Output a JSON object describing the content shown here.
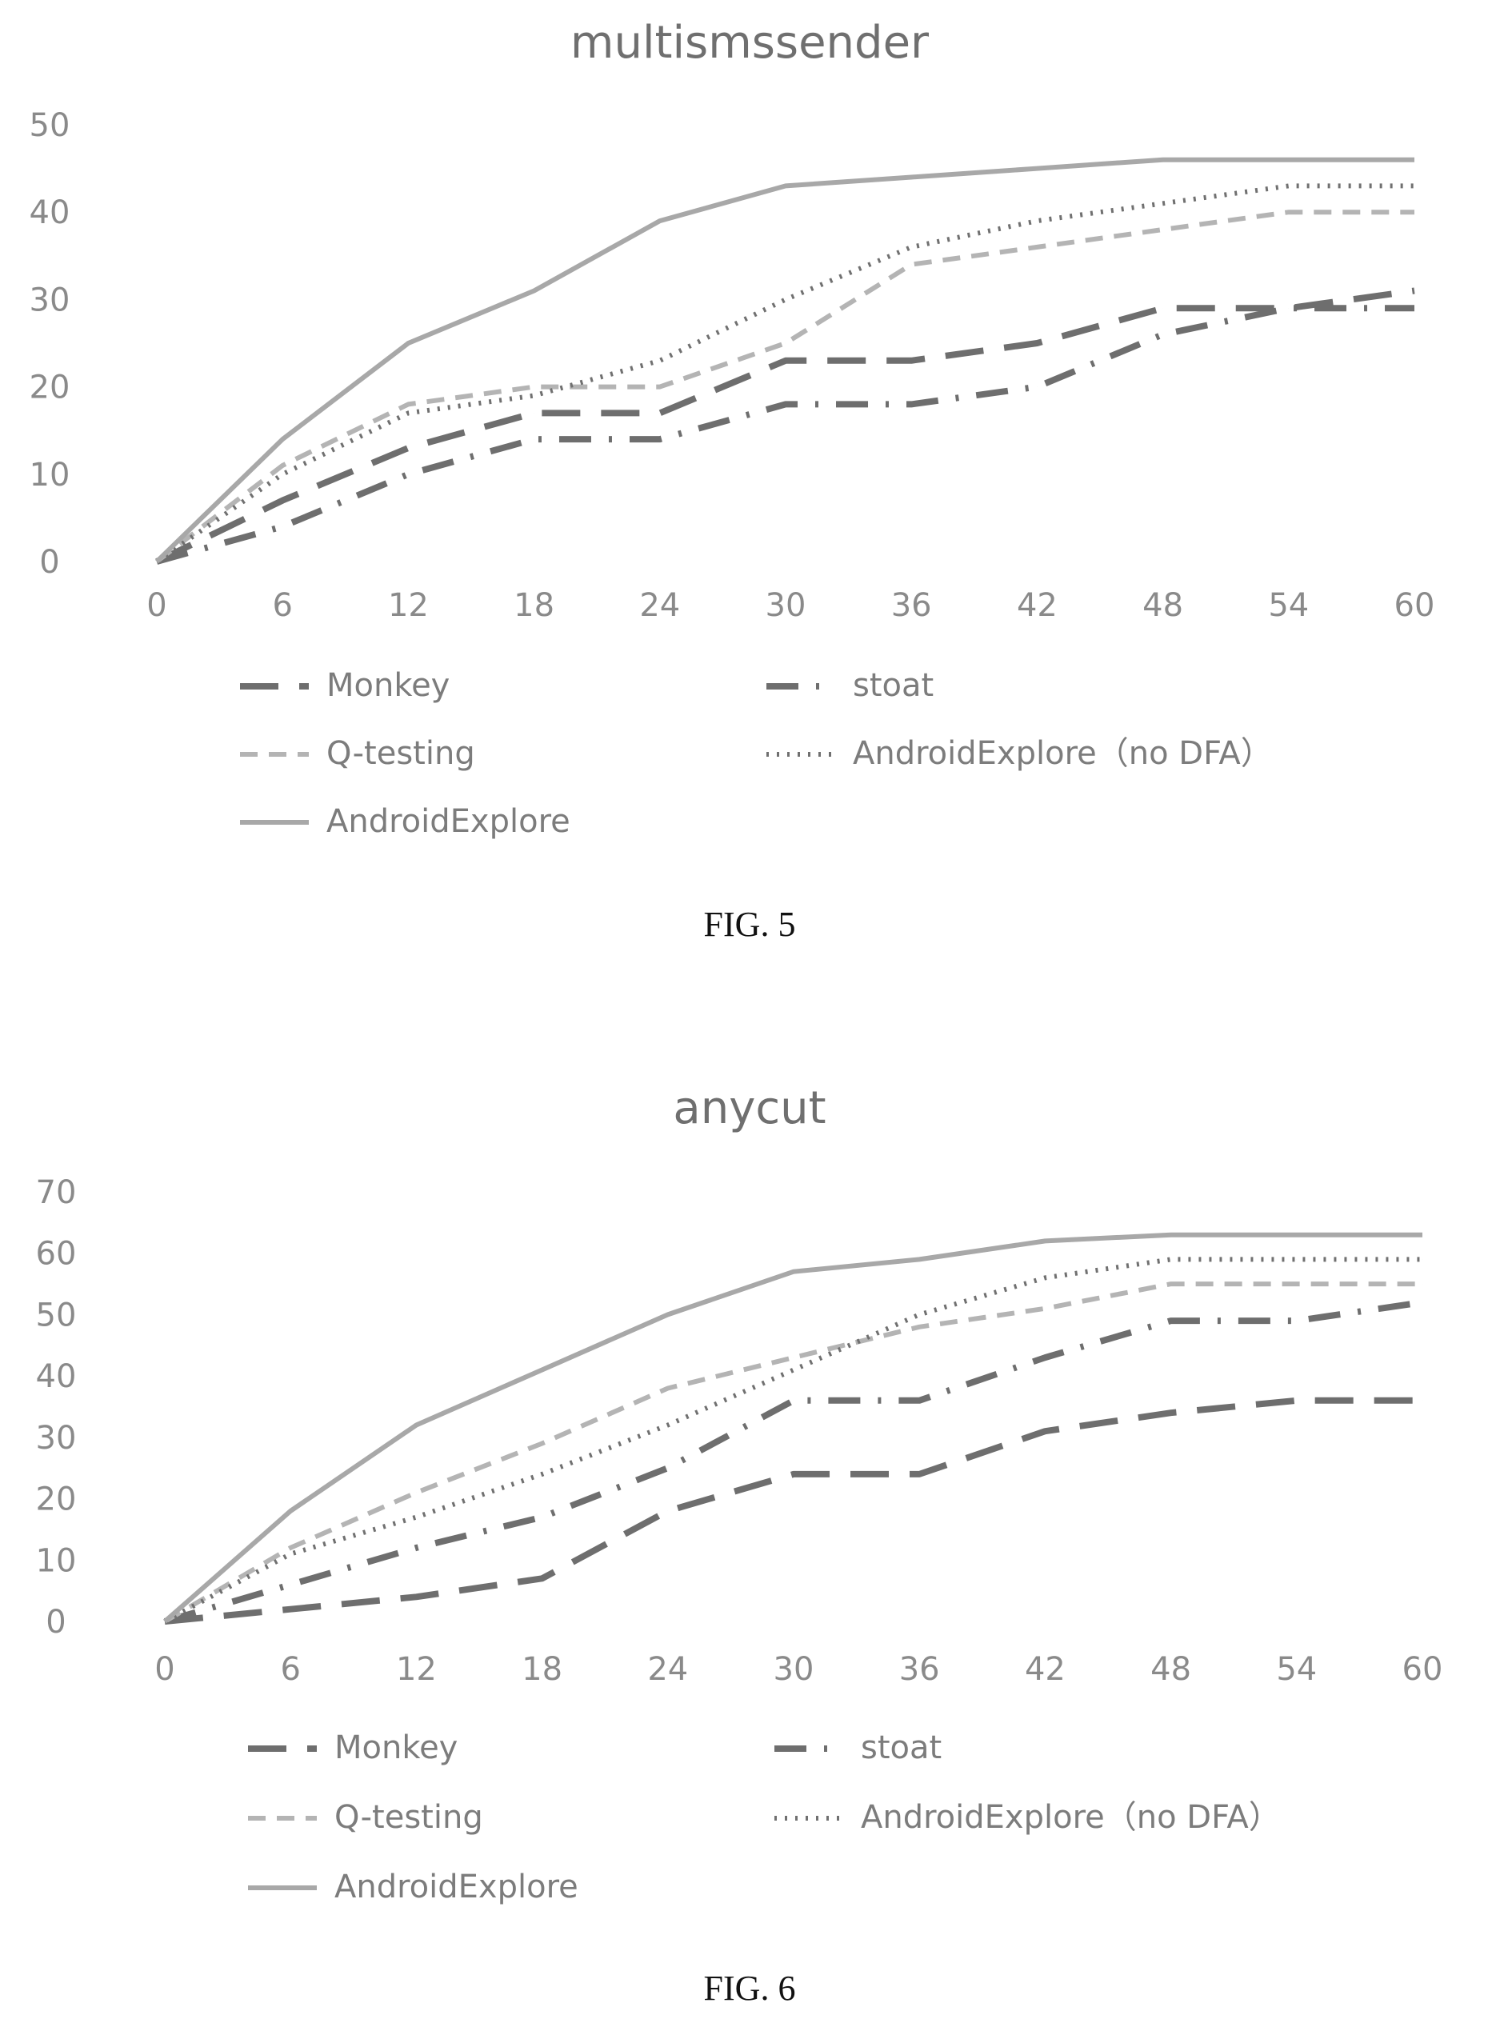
{
  "charts": [
    {
      "caption": "FIG. 5",
      "chart_data": {
        "type": "line",
        "title": "multismssender",
        "xlabel": "",
        "ylabel": "",
        "x": [
          0,
          6,
          12,
          18,
          24,
          30,
          36,
          42,
          48,
          54,
          60
        ],
        "x_ticks": [
          "0",
          "6",
          "12",
          "18",
          "24",
          "30",
          "36",
          "42",
          "48",
          "54",
          "60"
        ],
        "y_ticks": [
          "0",
          "10",
          "20",
          "30",
          "40",
          "50"
        ],
        "ylim": [
          0,
          50
        ],
        "grid": false,
        "legend_position": "bottom",
        "series": [
          {
            "name": "Monkey",
            "style": "long-dash",
            "color": "#6e6e6e",
            "values": [
              0,
              7,
              13,
              17,
              17,
              23,
              23,
              25,
              29,
              29,
              31
            ]
          },
          {
            "name": "stoat",
            "style": "dash-dot",
            "color": "#6e6e6e",
            "values": [
              0,
              4,
              10,
              14,
              14,
              18,
              18,
              20,
              26,
              29,
              29
            ]
          },
          {
            "name": "Q-testing",
            "style": "dashed",
            "color": "#b4b4b4",
            "values": [
              0,
              11,
              18,
              20,
              20,
              25,
              34,
              36,
              38,
              40,
              40
            ]
          },
          {
            "name": "AndroidExplore（no DFA）",
            "style": "dotted",
            "color": "#707070",
            "values": [
              0,
              10,
              17,
              19,
              23,
              30,
              36,
              39,
              41,
              43,
              43
            ]
          },
          {
            "name": "AndroidExplore",
            "style": "solid",
            "color": "#a8a8a8",
            "values": [
              0,
              14,
              25,
              31,
              39,
              43,
              44,
              45,
              46,
              46,
              46
            ]
          }
        ]
      }
    },
    {
      "caption": "FIG. 6",
      "chart_data": {
        "type": "line",
        "title": "anycut",
        "xlabel": "",
        "ylabel": "",
        "x": [
          0,
          6,
          12,
          18,
          24,
          30,
          36,
          42,
          48,
          54,
          60
        ],
        "x_ticks": [
          "0",
          "6",
          "12",
          "18",
          "24",
          "30",
          "36",
          "42",
          "48",
          "54",
          "60"
        ],
        "y_ticks": [
          "0",
          "10",
          "20",
          "30",
          "40",
          "50",
          "60",
          "70"
        ],
        "ylim": [
          0,
          70
        ],
        "grid": false,
        "legend_position": "bottom",
        "series": [
          {
            "name": "Monkey",
            "style": "long-dash",
            "color": "#6e6e6e",
            "values": [
              0,
              2,
              4,
              7,
              18,
              24,
              24,
              31,
              34,
              36,
              36
            ]
          },
          {
            "name": "stoat",
            "style": "dash-dot",
            "color": "#6e6e6e",
            "values": [
              0,
              6,
              12,
              17,
              25,
              36,
              36,
              43,
              49,
              49,
              52
            ]
          },
          {
            "name": "Q-testing",
            "style": "dashed",
            "color": "#b4b4b4",
            "values": [
              0,
              12,
              21,
              29,
              38,
              43,
              48,
              51,
              55,
              55,
              55
            ]
          },
          {
            "name": "AndroidExplore（no DFA）",
            "style": "dotted",
            "color": "#707070",
            "values": [
              0,
              11,
              17,
              24,
              32,
              41,
              50,
              56,
              59,
              59,
              59
            ]
          },
          {
            "name": "AndroidExplore",
            "style": "solid",
            "color": "#a8a8a8",
            "values": [
              0,
              18,
              32,
              41,
              50,
              57,
              59,
              62,
              63,
              63,
              63
            ]
          }
        ]
      }
    }
  ]
}
